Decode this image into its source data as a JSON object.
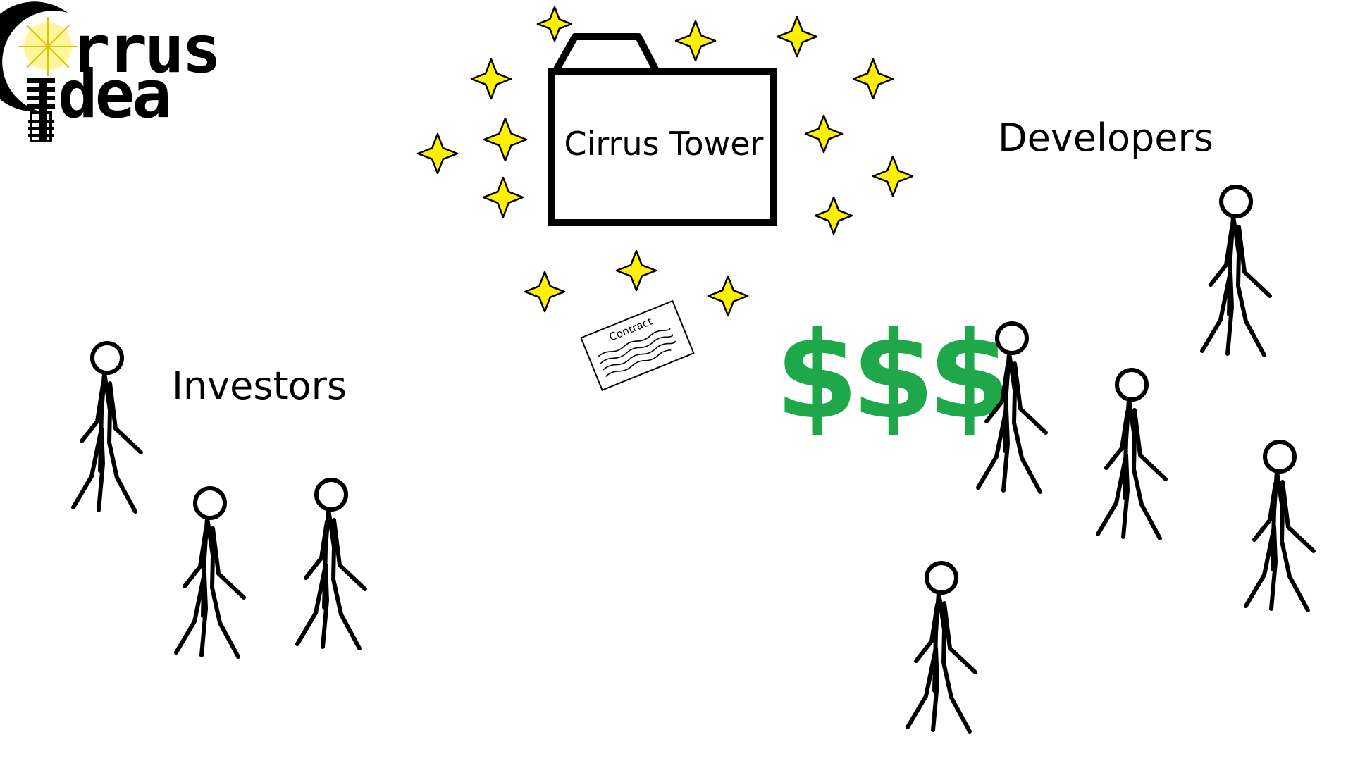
{
  "logo": {
    "text_line1": "Cirrus",
    "text_line2": "Idea",
    "display_line1": "rrus",
    "display_line2": "dea",
    "bulb_color": "#ffef4a"
  },
  "tower": {
    "label": "Cirrus Tower"
  },
  "contract": {
    "label": "Contract"
  },
  "money": {
    "symbols": "$$$",
    "color": "#1fa84a"
  },
  "groups": {
    "investors_label": "Investors",
    "developers_label": "Developers"
  },
  "colors": {
    "sparkle": "#ffef00",
    "outline": "#000000",
    "background": "#ffffff"
  }
}
